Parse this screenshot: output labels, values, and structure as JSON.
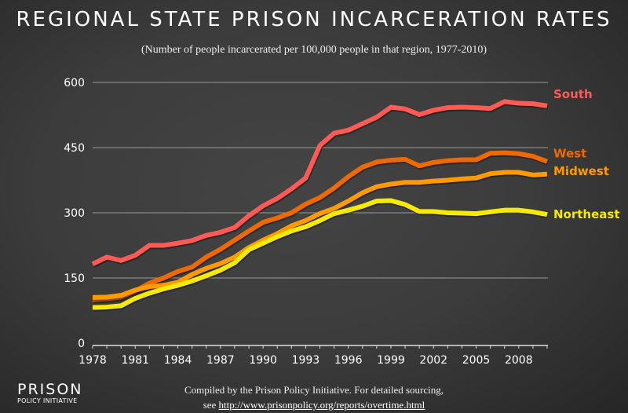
{
  "chart_data": {
    "type": "line",
    "title": "REGIONAL STATE PRISON INCARCERATION RATES",
    "subtitle": "(Number of people incarcerated per 100,000 people in that region, 1977-2010)",
    "xlabel": "",
    "ylabel": "",
    "x": [
      1978,
      1979,
      1980,
      1981,
      1982,
      1983,
      1984,
      1985,
      1986,
      1987,
      1988,
      1989,
      1990,
      1991,
      1992,
      1993,
      1994,
      1995,
      1996,
      1997,
      1998,
      1999,
      2000,
      2001,
      2002,
      2003,
      2004,
      2005,
      2006,
      2007,
      2008,
      2009,
      2010
    ],
    "xlim": [
      1978,
      2010
    ],
    "ylim": [
      0,
      600
    ],
    "x_ticks": [
      "1978",
      "1981",
      "1984",
      "1987",
      "1990",
      "1993",
      "1996",
      "1999",
      "2002",
      "2005",
      "2008"
    ],
    "y_ticks": [
      "0",
      "150",
      "300",
      "450",
      "600"
    ],
    "grid": "horizontal",
    "legend": "labels at right end of lines",
    "series": [
      {
        "name": "South",
        "color": "#ff5a55",
        "values": [
          182,
          198,
          190,
          202,
          225,
          225,
          230,
          236,
          248,
          255,
          266,
          293,
          316,
          333,
          355,
          380,
          455,
          483,
          490,
          505,
          520,
          543,
          539,
          526,
          536,
          542,
          543,
          542,
          540,
          556,
          552,
          551,
          546
        ]
      },
      {
        "name": "West",
        "color": "#ee6a00",
        "values": [
          100,
          102,
          106,
          120,
          138,
          150,
          165,
          175,
          198,
          216,
          237,
          258,
          278,
          288,
          300,
          320,
          335,
          357,
          383,
          405,
          417,
          421,
          423,
          408,
          416,
          420,
          422,
          422,
          437,
          438,
          436,
          430,
          418
        ]
      },
      {
        "name": "Midwest",
        "color": "#ff9a00",
        "values": [
          105,
          106,
          110,
          122,
          130,
          133,
          140,
          158,
          172,
          183,
          198,
          220,
          237,
          252,
          270,
          282,
          298,
          310,
          327,
          346,
          360,
          366,
          370,
          370,
          373,
          375,
          378,
          380,
          390,
          393,
          393,
          387,
          389
        ]
      },
      {
        "name": "Northeast",
        "color": "#f5ea00",
        "values": [
          82,
          83,
          86,
          103,
          115,
          125,
          133,
          143,
          155,
          168,
          185,
          215,
          230,
          245,
          258,
          268,
          282,
          298,
          306,
          315,
          327,
          328,
          319,
          303,
          303,
          300,
          299,
          298,
          302,
          306,
          306,
          302,
          296
        ]
      }
    ]
  },
  "footer": {
    "logo_main": "PRISON",
    "logo_sub": "POLICY INITIATIVE",
    "credit_line1": "Compiled by the Prison Policy Initiative. For detailed sourcing,",
    "credit_see": "see",
    "credit_link": "http://www.prisonpolicy.org/reports/overtime.html"
  }
}
